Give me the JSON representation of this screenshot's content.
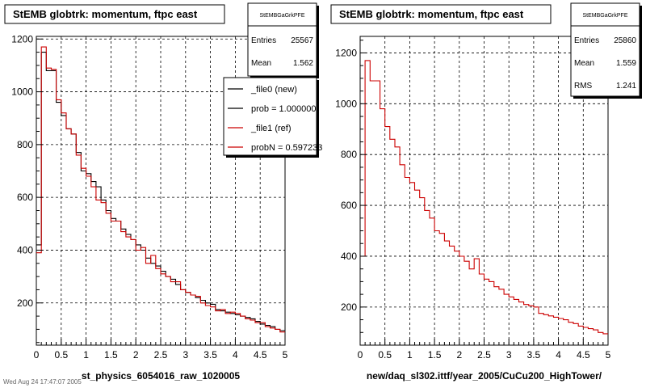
{
  "chart_data": [
    {
      "type": "histogram",
      "title": "StEMB globtrk: momentum, ftpc east",
      "xlabel": "st_physics_6054016_raw_1020005",
      "ylabel": "",
      "xlim": [
        0,
        5
      ],
      "ylim": [
        40,
        1210
      ],
      "xticks": [
        "0",
        "0.5",
        "1",
        "1.5",
        "2",
        "2.5",
        "3",
        "3.5",
        "4",
        "4.5",
        "5"
      ],
      "yticks": [
        "200",
        "400",
        "600",
        "800",
        "1000",
        "1200"
      ],
      "grid": true,
      "stats": {
        "name": "StEMBGaGrkPFE",
        "entries_label": "Entries",
        "entries": "25567",
        "mean_label": "Mean",
        "mean": "1.562"
      },
      "legend": {
        "placement": "top-right",
        "entries": [
          {
            "label": "_file0 (new)",
            "color": "#000000"
          },
          {
            "label": "prob = 1.000000",
            "color": "#000000"
          },
          {
            "label": "_file1 (ref)",
            "color": "#cc0000"
          },
          {
            "label": "probN = 0.597233",
            "color": "#cc0000"
          }
        ]
      },
      "bin_width": 0.1,
      "series": [
        {
          "color": "#000000",
          "values": [
            420,
            1150,
            1080,
            1080,
            960,
            910,
            860,
            840,
            770,
            700,
            690,
            660,
            640,
            590,
            550,
            520,
            510,
            480,
            460,
            440,
            420,
            400,
            370,
            350,
            340,
            320,
            300,
            290,
            270,
            250,
            240,
            230,
            220,
            210,
            200,
            195,
            175,
            170,
            165,
            160,
            155,
            150,
            145,
            140,
            130,
            120,
            115,
            110,
            100,
            95
          ]
        },
        {
          "color": "#cc0000",
          "values": [
            390,
            1170,
            1090,
            1085,
            970,
            920,
            860,
            840,
            760,
            710,
            680,
            640,
            590,
            580,
            540,
            510,
            510,
            470,
            450,
            440,
            400,
            410,
            350,
            380,
            330,
            310,
            300,
            280,
            280,
            250,
            240,
            230,
            225,
            200,
            190,
            185,
            170,
            175,
            160,
            165,
            160,
            150,
            140,
            135,
            125,
            125,
            110,
            105,
            100,
            90
          ]
        }
      ]
    },
    {
      "type": "histogram",
      "title": "StEMB globtrk: momentum, ftpc east",
      "xlabel": "new/daq_sl302.ittf/year_2005/CuCu200_HighTower/",
      "ylabel": "",
      "xlim": [
        0,
        5
      ],
      "ylim": [
        50,
        1265
      ],
      "xticks": [
        "0",
        "0.5",
        "1",
        "1.5",
        "2",
        "2.5",
        "3",
        "3.5",
        "4",
        "4.5",
        "5"
      ],
      "yticks": [
        "200",
        "400",
        "600",
        "800",
        "1000",
        "1200"
      ],
      "grid": true,
      "stats": {
        "name": "StEMBGaGrkPFE",
        "entries_label": "Entries",
        "entries": "25860",
        "mean_label": "Mean",
        "mean": "1.559",
        "rms_label": "RMS",
        "rms": "1.241"
      },
      "bin_width": 0.1,
      "series": [
        {
          "color": "#cc0000",
          "values": [
            400,
            1170,
            1090,
            1090,
            980,
            910,
            860,
            830,
            760,
            710,
            690,
            660,
            630,
            580,
            550,
            500,
            490,
            460,
            440,
            420,
            400,
            380,
            350,
            390,
            330,
            310,
            300,
            280,
            270,
            250,
            240,
            230,
            220,
            210,
            205,
            200,
            175,
            170,
            165,
            160,
            155,
            150,
            140,
            135,
            125,
            120,
            115,
            110,
            100,
            95
          ]
        }
      ]
    }
  ],
  "footer": {
    "text": "Wed Aug 24 17:47:07 2005"
  }
}
